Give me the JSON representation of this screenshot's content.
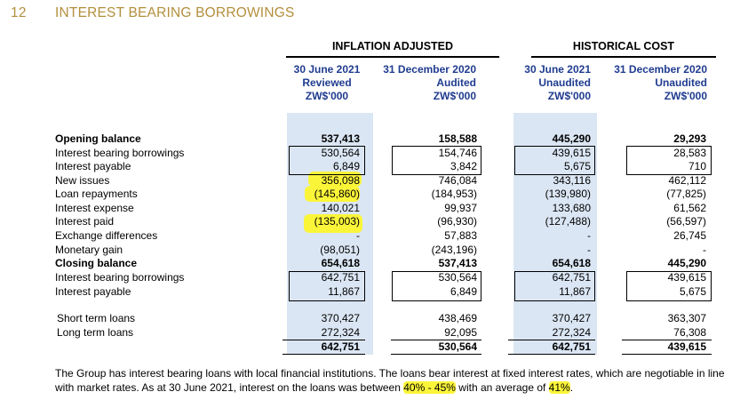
{
  "section": {
    "number": "12",
    "title": "INTEREST BEARING BORROWINGS"
  },
  "groups": {
    "inflation": "INFLATION ADJUSTED",
    "historical": "HISTORICAL COST"
  },
  "columns": [
    {
      "date": "30 June 2021",
      "status": "Reviewed",
      "unit": "ZW$'000"
    },
    {
      "date": "31 December 2020",
      "status": "Audited",
      "unit": "ZW$'000"
    },
    {
      "date": "30 June 2021",
      "status": "Unaudited",
      "unit": "ZW$'000"
    },
    {
      "date": "31 December 2020",
      "status": "Unaudited",
      "unit": "ZW$'000"
    }
  ],
  "rows": [
    {
      "label": "Opening balance",
      "values": [
        "537,413",
        "158,588",
        "445,290",
        "29,293"
      ]
    },
    {
      "label": "Interest bearing borrowings",
      "values": [
        "530,564",
        "154,746",
        "439,615",
        "28,583"
      ]
    },
    {
      "label": "Interest payable",
      "values": [
        "6,849",
        "3,842",
        "5,675",
        "710"
      ]
    },
    {
      "label": "New issues",
      "values": [
        "356,098",
        "746,084",
        "343,116",
        "462,112"
      ]
    },
    {
      "label": "Loan repayments",
      "values": [
        "(145,860)",
        "(184,953)",
        "(139,980)",
        "(77,825)"
      ]
    },
    {
      "label": "Interest expense",
      "values": [
        "140,021",
        "99,937",
        "133,680",
        "61,562"
      ]
    },
    {
      "label": "Interest paid",
      "values": [
        "(135,003)",
        "(96,930)",
        "(127,488)",
        "(56,597)"
      ]
    },
    {
      "label": "Exchange differences",
      "values": [
        "-",
        "57,883",
        "-",
        "26,745"
      ]
    },
    {
      "label": "Monetary gain",
      "values": [
        "(98,051)",
        "(243,196)",
        "-",
        "-"
      ]
    },
    {
      "label": "Closing balance",
      "values": [
        "654,618",
        "537,413",
        "654,618",
        "445,290"
      ]
    },
    {
      "label": "Interest bearing borrowings",
      "values": [
        "642,751",
        "530,564",
        "642,751",
        "439,615"
      ]
    },
    {
      "label": "Interest payable",
      "values": [
        "11,867",
        "6,849",
        "11,867",
        "5,675"
      ]
    }
  ],
  "loans": [
    {
      "label": "Short term loans",
      "values": [
        "370,427",
        "438,469",
        "370,427",
        "363,307"
      ]
    },
    {
      "label": "Long term loans",
      "values": [
        "272,324",
        "92,095",
        "272,324",
        "76,308"
      ]
    }
  ],
  "loan_totals": [
    "642,751",
    "530,564",
    "642,751",
    "439,615"
  ],
  "note": {
    "part1": "The Group has interest bearing loans with local financial institutions. The loans bear interest at fixed interest rates, which are negotiable in line with market rates. As at 30 June 2021, interest on the loans was between ",
    "range": "40% - 45%",
    "part2": " with an average of ",
    "avg": "41%",
    "part3": "."
  },
  "colors": {
    "heading": "#b38f3c",
    "column_header": "#1f3b8f",
    "shade": "#dbe6f4",
    "highlight": "#fbf53a"
  }
}
